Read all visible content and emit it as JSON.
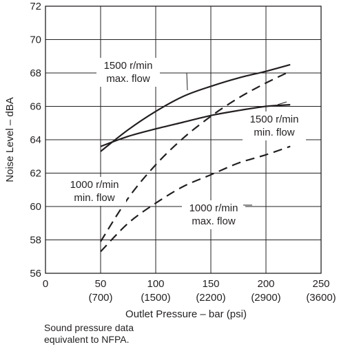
{
  "chart_data": {
    "type": "line",
    "xlabel": "Outlet Pressure – bar (psi)",
    "ylabel": "Noise Level – dBA",
    "xlim": [
      0,
      250
    ],
    "ylim": [
      56,
      72
    ],
    "xticks": [
      {
        "value": 0,
        "label": "0",
        "sub": ""
      },
      {
        "value": 50,
        "label": "50",
        "sub": "(700)"
      },
      {
        "value": 100,
        "label": "100",
        "sub": "(1500)"
      },
      {
        "value": 150,
        "label": "150",
        "sub": "(2200)"
      },
      {
        "value": 200,
        "label": "200",
        "sub": "(2900)"
      },
      {
        "value": 250,
        "label": "250",
        "sub": "(3600)"
      }
    ],
    "yticks": [
      56,
      58,
      60,
      62,
      64,
      66,
      68,
      70,
      72
    ],
    "grid": true,
    "series": [
      {
        "name": "1500 r/min max. flow",
        "style": "solid",
        "x": [
          50,
          75,
          100,
          125,
          150,
          175,
          200,
          222
        ],
        "y": [
          63.3,
          64.6,
          65.7,
          66.6,
          67.2,
          67.7,
          68.1,
          68.5
        ]
      },
      {
        "name": "1500 r/min min. flow",
        "style": "solid",
        "x": [
          50,
          75,
          100,
          125,
          150,
          175,
          200,
          222
        ],
        "y": [
          63.6,
          64.2,
          64.65,
          65.05,
          65.45,
          65.75,
          66.0,
          66.1
        ]
      },
      {
        "name": "1000 r/min min. flow",
        "style": "dashed",
        "x": [
          50,
          75,
          100,
          125,
          150,
          175,
          200,
          222
        ],
        "y": [
          57.9,
          60.5,
          62.5,
          64.1,
          65.4,
          66.5,
          67.4,
          68.1
        ]
      },
      {
        "name": "1000 r/min max. flow",
        "style": "dashed",
        "x": [
          50,
          75,
          100,
          125,
          150,
          175,
          200,
          222
        ],
        "y": [
          57.3,
          59.0,
          60.2,
          61.2,
          61.9,
          62.6,
          63.1,
          63.6
        ]
      }
    ],
    "annotations": [
      {
        "lines": [
          "1500 r/min",
          "max. flow"
        ],
        "series": 0
      },
      {
        "lines": [
          "1500 r/min",
          "min. flow"
        ],
        "series": 1
      },
      {
        "lines": [
          "1000 r/min",
          "min. flow"
        ],
        "series": 2
      },
      {
        "lines": [
          "1000 r/min",
          "max. flow"
        ],
        "series": 3
      }
    ]
  },
  "footnote": [
    "Sound pressure data",
    "equivalent to NFPA."
  ]
}
